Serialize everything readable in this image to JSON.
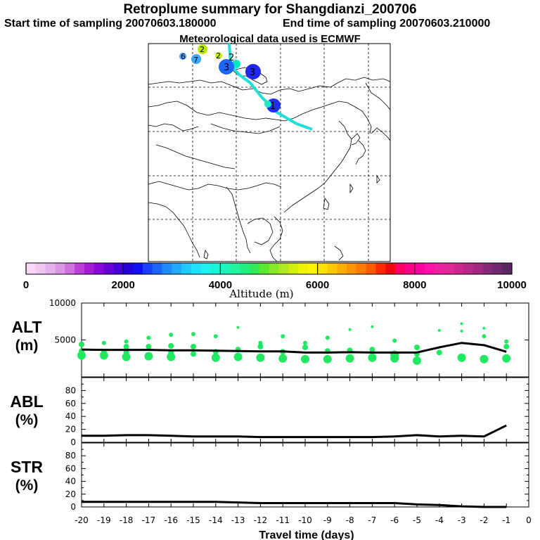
{
  "header": {
    "title": "Retroplume summary for Shangdianzi_200706",
    "start": "Start time of sampling 20070603.180000",
    "end": "End time of sampling 20070603.210000",
    "met": "Meteorological data used is ECMWF"
  },
  "map_labels": [
    {
      "text": "6",
      "color": "#3fa0ff"
    },
    {
      "text": "7",
      "color": "#3fa8ff"
    },
    {
      "text": "2",
      "color": "#b8e800"
    },
    {
      "text": "2",
      "color": "#c6f000"
    },
    {
      "text": "2",
      "color": "#00e8c0"
    },
    {
      "text": "3",
      "color": "#1a66ff"
    },
    {
      "text": "3",
      "color": "#2226ee"
    },
    {
      "text": "1",
      "color": "#2030ee"
    }
  ],
  "chart_data": [
    {
      "type": "colorbar",
      "xlabel": "Altitude (m)",
      "range": [
        0,
        10000
      ],
      "tick_labels": [
        "0",
        "2000",
        "4000",
        "6000",
        "8000",
        "10000"
      ],
      "colors": [
        "#f6d8f6",
        "#eec6f0",
        "#e6b0ec",
        "#dc96e6",
        "#cf6fe0",
        "#bb3fd8",
        "#a61ad6",
        "#8a06da",
        "#6a00d8",
        "#4400d8",
        "#2200d8",
        "#1010f0",
        "#1a40ff",
        "#1a66ff",
        "#1c8cff",
        "#1eaaff",
        "#20c8ff",
        "#20e0ff",
        "#1cf2f2",
        "#18f4d8",
        "#1cf4be",
        "#20f49e",
        "#20ee80",
        "#30e858",
        "#58e830",
        "#88e828",
        "#b0e820",
        "#d0ee10",
        "#ecf200",
        "#fff400",
        "#ffe000",
        "#ffc800",
        "#ffae00",
        "#ff9400",
        "#ff7a00",
        "#ff5a00",
        "#ff2a00",
        "#ee0a10",
        "#ff0066",
        "#ff0088",
        "#ff00a0",
        "#ff10a8",
        "#f020a0",
        "#e02898",
        "#cc2890",
        "#b82888",
        "#a02880",
        "#882878",
        "#702870",
        "#5a2860"
      ]
    },
    {
      "type": "line",
      "ylabel": "ALT\n(m)",
      "ylim": [
        0,
        10000
      ],
      "yticks": [
        "5000",
        "10000"
      ],
      "x": [
        -20,
        -19,
        -18,
        -17,
        -16,
        -15,
        -14,
        -13,
        -12,
        -11,
        -10,
        -9,
        -8,
        -7,
        -6,
        -5,
        -4,
        -3,
        -2,
        -1
      ],
      "values": [
        3700,
        3650,
        3650,
        3650,
        3600,
        3600,
        3550,
        3500,
        3450,
        3450,
        3300,
        3300,
        3350,
        3300,
        3300,
        3300,
        4000,
        4600,
        4300,
        3400
      ],
      "scatter_color": "#20e860",
      "scatter": [
        {
          "t": -20,
          "alt": 4400
        },
        {
          "t": -20,
          "alt": 3500
        },
        {
          "t": -20,
          "alt": 2900
        },
        {
          "t": -19,
          "alt": 4600
        },
        {
          "t": -19,
          "alt": 3300
        },
        {
          "t": -19,
          "alt": 2900
        },
        {
          "t": -18,
          "alt": 4800
        },
        {
          "t": -18,
          "alt": 4100
        },
        {
          "t": -18,
          "alt": 3300
        },
        {
          "t": -18,
          "alt": 2700
        },
        {
          "t": -17,
          "alt": 5300
        },
        {
          "t": -17,
          "alt": 4100
        },
        {
          "t": -17,
          "alt": 2800
        },
        {
          "t": -16,
          "alt": 5700
        },
        {
          "t": -16,
          "alt": 4200
        },
        {
          "t": -16,
          "alt": 3300
        },
        {
          "t": -16,
          "alt": 2700
        },
        {
          "t": -15,
          "alt": 5800
        },
        {
          "t": -15,
          "alt": 4100
        },
        {
          "t": -15,
          "alt": 3100
        },
        {
          "t": -14,
          "alt": 5500
        },
        {
          "t": -14,
          "alt": 3400
        },
        {
          "t": -14,
          "alt": 2600
        },
        {
          "t": -13,
          "alt": 6700
        },
        {
          "t": -13,
          "alt": 3700
        },
        {
          "t": -13,
          "alt": 2700
        },
        {
          "t": -12,
          "alt": 4600
        },
        {
          "t": -12,
          "alt": 4100
        },
        {
          "t": -12,
          "alt": 2600
        },
        {
          "t": -11,
          "alt": 5500
        },
        {
          "t": -11,
          "alt": 3400
        },
        {
          "t": -11,
          "alt": 2500
        },
        {
          "t": -10,
          "alt": 4600
        },
        {
          "t": -10,
          "alt": 4000
        },
        {
          "t": -10,
          "alt": 2400
        },
        {
          "t": -9,
          "alt": 5300
        },
        {
          "t": -9,
          "alt": 3500
        },
        {
          "t": -9,
          "alt": 2400
        },
        {
          "t": -8,
          "alt": 6400
        },
        {
          "t": -8,
          "alt": 3600
        },
        {
          "t": -8,
          "alt": 2500
        },
        {
          "t": -7,
          "alt": 6800
        },
        {
          "t": -7,
          "alt": 3700
        },
        {
          "t": -7,
          "alt": 2600
        },
        {
          "t": -6,
          "alt": 4900
        },
        {
          "t": -6,
          "alt": 3000
        },
        {
          "t": -6,
          "alt": 2500
        },
        {
          "t": -5,
          "alt": 4000
        },
        {
          "t": -5,
          "alt": 3100
        },
        {
          "t": -5,
          "alt": 2200
        },
        {
          "t": -4,
          "alt": 6300
        },
        {
          "t": -4,
          "alt": 3300
        },
        {
          "t": -3,
          "alt": 7200
        },
        {
          "t": -3,
          "alt": 6200
        },
        {
          "t": -3,
          "alt": 2600
        },
        {
          "t": -2,
          "alt": 6600
        },
        {
          "t": -2,
          "alt": 5500
        },
        {
          "t": -2,
          "alt": 2400
        },
        {
          "t": -1,
          "alt": 4800
        },
        {
          "t": -1,
          "alt": 4100
        },
        {
          "t": -1,
          "alt": 2500
        }
      ]
    },
    {
      "type": "line",
      "ylabel": "ABL\n(%)",
      "ylim": [
        0,
        100
      ],
      "yticks": [
        "0",
        "20",
        "40",
        "60",
        "80"
      ],
      "x": [
        -20,
        -19,
        -18,
        -17,
        -16,
        -15,
        -14,
        -13,
        -12,
        -11,
        -10,
        -9,
        -8,
        -7,
        -6,
        -5,
        -4,
        -3,
        -2,
        -1
      ],
      "values": [
        10,
        10,
        11,
        11,
        10,
        9,
        9,
        9,
        8,
        8,
        8,
        8,
        8,
        8,
        9,
        11,
        9,
        10,
        9,
        26
      ]
    },
    {
      "type": "line",
      "ylabel": "STR\n(%)",
      "ylim": [
        0,
        100
      ],
      "yticks": [
        "0",
        "20",
        "40",
        "60",
        "80"
      ],
      "xlabel": "Travel time (days)",
      "xticks": [
        "-20",
        "-19",
        "-18",
        "-17",
        "-16",
        "-15",
        "-14",
        "-13",
        "-12",
        "-11",
        "-10",
        "-9",
        "-8",
        "-7",
        "-6",
        "-5",
        "-4",
        "-3",
        "-2",
        "-1",
        "0"
      ],
      "x": [
        -20,
        -19,
        -18,
        -17,
        -16,
        -15,
        -14,
        -13,
        -12,
        -11,
        -10,
        -9,
        -8,
        -7,
        -6,
        -5,
        -4,
        -3,
        -2,
        -1
      ],
      "values": [
        8,
        8,
        8,
        8,
        8,
        8,
        8,
        7,
        6,
        6,
        6,
        6,
        6,
        6,
        6,
        4,
        3,
        1,
        0,
        0
      ]
    }
  ]
}
